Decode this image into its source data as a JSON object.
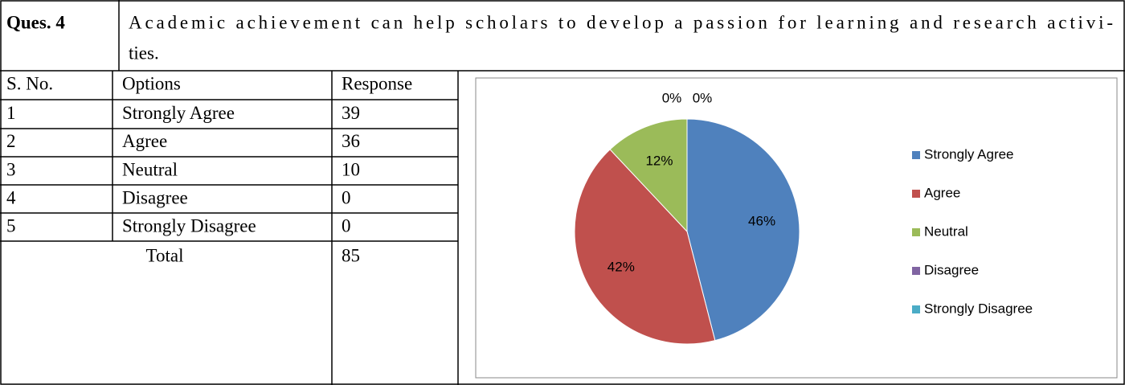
{
  "question": {
    "label": "Ques. 4",
    "lines": [
      "Academic achievement can help scholars to develop a passion for learning and research activi-",
      "ties."
    ]
  },
  "table": {
    "header": [
      "S. No.",
      "Options",
      "Response"
    ],
    "rows": [
      [
        1,
        "Strongly Agree",
        39
      ],
      [
        2,
        "Agree",
        36
      ],
      [
        3,
        "Neutral",
        10
      ],
      [
        4,
        "Disagree",
        0
      ],
      [
        5,
        "Strongly Disagree",
        0
      ]
    ],
    "total": {
      "label": "Total",
      "value": 85
    }
  },
  "chart_data": {
    "type": "pie",
    "categories": [
      "Strongly Agree",
      "Agree",
      "Neutral",
      "Disagree",
      "Strongly Disagree"
    ],
    "values": [
      46,
      42,
      12,
      0,
      0
    ],
    "value_labels": [
      "46%",
      "42%",
      "12%",
      "0%",
      "0%"
    ],
    "colors": [
      "#4f81bd",
      "#c0504d",
      "#9bbb59",
      "#8064a2",
      "#4bacc6"
    ],
    "legend": "right"
  }
}
